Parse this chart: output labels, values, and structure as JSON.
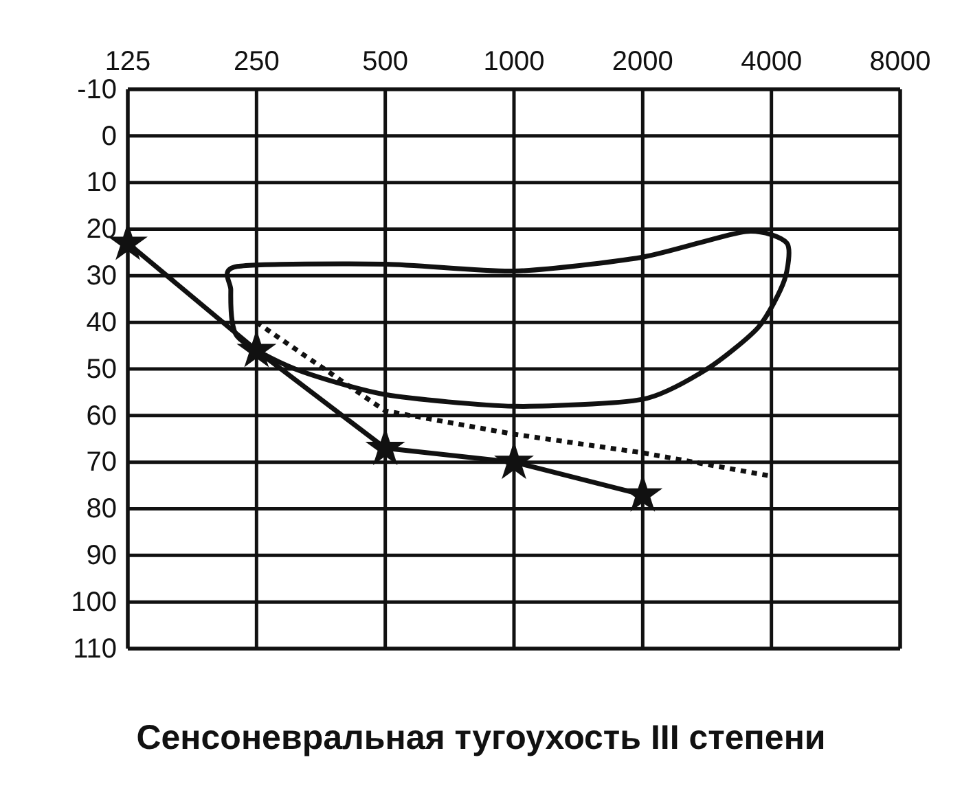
{
  "chart_data": {
    "type": "line",
    "title": "Сенсоневральная тугоухость III степени",
    "categories": [
      "125",
      "250",
      "500",
      "1000",
      "2000",
      "4000",
      "8000"
    ],
    "ylim": [
      110,
      -10
    ],
    "yticks": [
      -10,
      0,
      10,
      20,
      30,
      40,
      50,
      60,
      70,
      80,
      90,
      100,
      110
    ],
    "grid": true,
    "series": [
      {
        "color": "#111111",
        "values": [
          23,
          46,
          67,
          70,
          77,
          null,
          null
        ],
        "marker": "star",
        "line_style": "solid"
      },
      {
        "color": "#111111",
        "values": [
          null,
          40,
          59,
          64,
          68,
          73,
          null
        ],
        "marker": "none",
        "line_style": "dotted"
      }
    ]
  }
}
